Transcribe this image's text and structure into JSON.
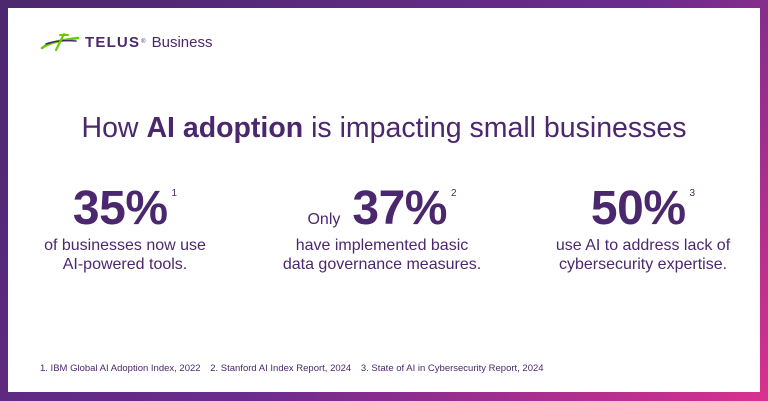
{
  "brand": {
    "name": "TELUS",
    "trademark": "®",
    "sub": "Business",
    "icon": "telus-logo-icon",
    "colors": {
      "purple": "#4b286d",
      "green": "#66cc00",
      "pink": "#d9318f"
    }
  },
  "headline": {
    "prefix": "How ",
    "bold": "AI adoption",
    "suffix": " is impacting small businesses"
  },
  "stats": [
    {
      "prefix": "",
      "value": "35%",
      "ref": "1",
      "line1": "of businesses now use",
      "line2": "AI-powered tools."
    },
    {
      "prefix": "Only",
      "value": "37%",
      "ref": "2",
      "line1": "have implemented basic",
      "line2": "data governance measures."
    },
    {
      "prefix": "",
      "value": "50%",
      "ref": "3",
      "line1": "use AI to address lack of",
      "line2": "cybersecurity expertise."
    }
  ],
  "footnotes": [
    "1. IBM Global AI Adoption Index, 2022",
    "2. Stanford AI Index Report, 2024",
    "3. State of AI in Cybersecurity Report, 2024"
  ]
}
